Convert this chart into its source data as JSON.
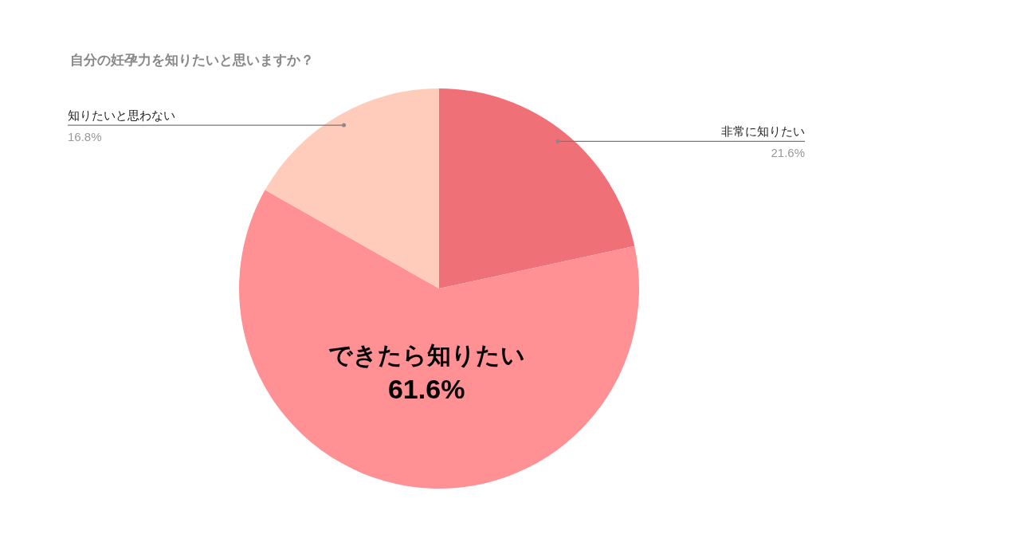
{
  "chart_data": {
    "type": "pie",
    "title": "自分の妊孕力を知りたいと思いますか？",
    "categories": [
      "非常に知りたい",
      "できたら知りたい",
      "知りたいと思わない"
    ],
    "values": [
      21.6,
      61.6,
      16.8
    ],
    "value_labels": [
      "21.6%",
      "61.6%",
      "16.8%"
    ],
    "colors": [
      "#f07077",
      "#ff9194",
      "#ffcbbb"
    ]
  }
}
